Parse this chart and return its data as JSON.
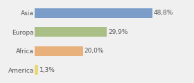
{
  "categories": [
    "Asia",
    "Europa",
    "Africa",
    "America"
  ],
  "values": [
    48.8,
    29.9,
    20.0,
    1.3
  ],
  "labels": [
    "48,8%",
    "29,9%",
    "20,0%",
    "1,3%"
  ],
  "bar_colors": [
    "#7a9ec9",
    "#aabf85",
    "#e8b07a",
    "#e8d87a"
  ],
  "background_color": "#f0f0f0",
  "xlim": [
    0,
    62
  ],
  "bar_height": 0.5,
  "label_fontsize": 6.5,
  "tick_fontsize": 6.5
}
